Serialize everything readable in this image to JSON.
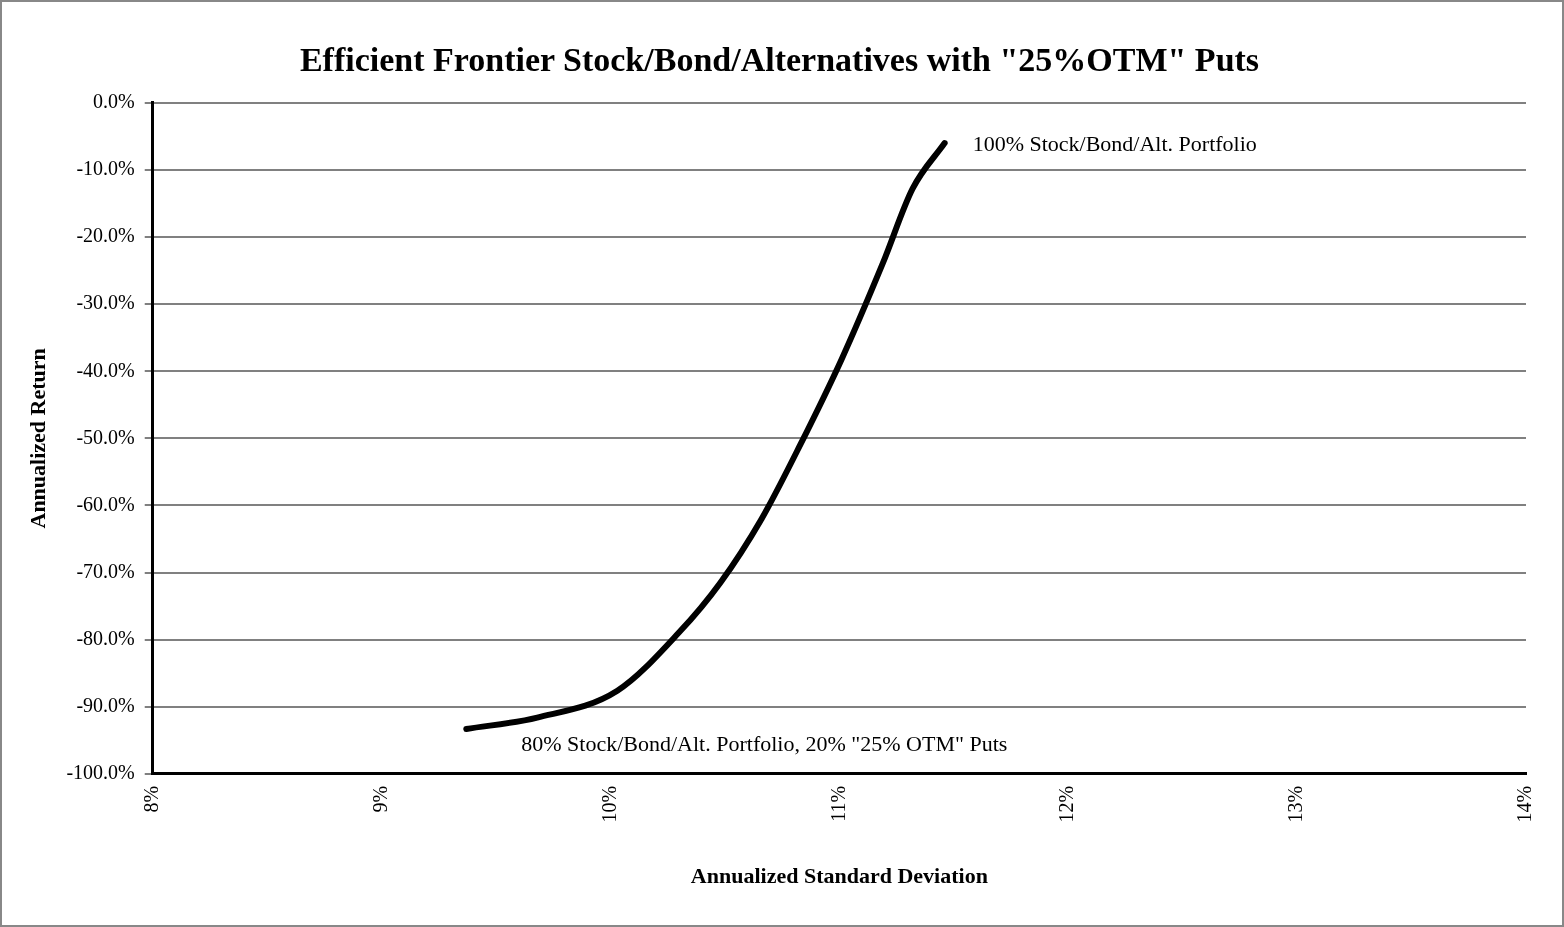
{
  "chart_data": {
    "type": "line",
    "title": "Efficient Frontier Stock/Bond/Alternatives with \"25%OTM\" Puts",
    "xlabel": "Annualized Standard Deviation",
    "ylabel": "Annualized Return",
    "series": [
      {
        "color": "#000000",
        "x": [
          9.37,
          9.68,
          10.03,
          10.3,
          10.48,
          10.66,
          10.83,
          11.01,
          11.19,
          11.32,
          11.46
        ],
        "values": [
          -93.3,
          -91.6,
          -87.6,
          -78.9,
          -71.5,
          -62.0,
          -50.9,
          -38.2,
          -23.9,
          -12.8,
          -6.0
        ]
      }
    ],
    "xlim": [
      8,
      14
    ],
    "xticks": [
      {
        "value": 8,
        "label": "8%"
      },
      {
        "value": 9,
        "label": "9%"
      },
      {
        "value": 10,
        "label": "10%"
      },
      {
        "value": 11,
        "label": "11%"
      },
      {
        "value": 12,
        "label": "12%"
      },
      {
        "value": 13,
        "label": "13%"
      },
      {
        "value": 14,
        "label": "14%"
      }
    ],
    "ylim": [
      -100,
      0
    ],
    "yticks": [
      {
        "value": 0,
        "label": "0.0%"
      },
      {
        "value": -10,
        "label": "-10.0%"
      },
      {
        "value": -20,
        "label": "-20.0%"
      },
      {
        "value": -30,
        "label": "-30.0%"
      },
      {
        "value": -40,
        "label": "-40.0%"
      },
      {
        "value": -50,
        "label": "-50.0%"
      },
      {
        "value": -60,
        "label": "-60.0%"
      },
      {
        "value": -70,
        "label": "-70.0%"
      },
      {
        "value": -80,
        "label": "-80.0%"
      },
      {
        "value": -90,
        "label": "-90.0%"
      },
      {
        "value": -100,
        "label": "-100.0%"
      }
    ],
    "grid": "y",
    "legend": false,
    "marker": "none",
    "line_style": "solid",
    "annotations": [
      {
        "text": "100% Stock/Bond/Alt. Portfolio",
        "x": 11.46,
        "y": -6.0
      },
      {
        "text": "80% Stock/Bond/Alt. Portfolio, 20% \"25% OTM\" Puts",
        "x": 9.37,
        "y": -93.3
      }
    ]
  }
}
